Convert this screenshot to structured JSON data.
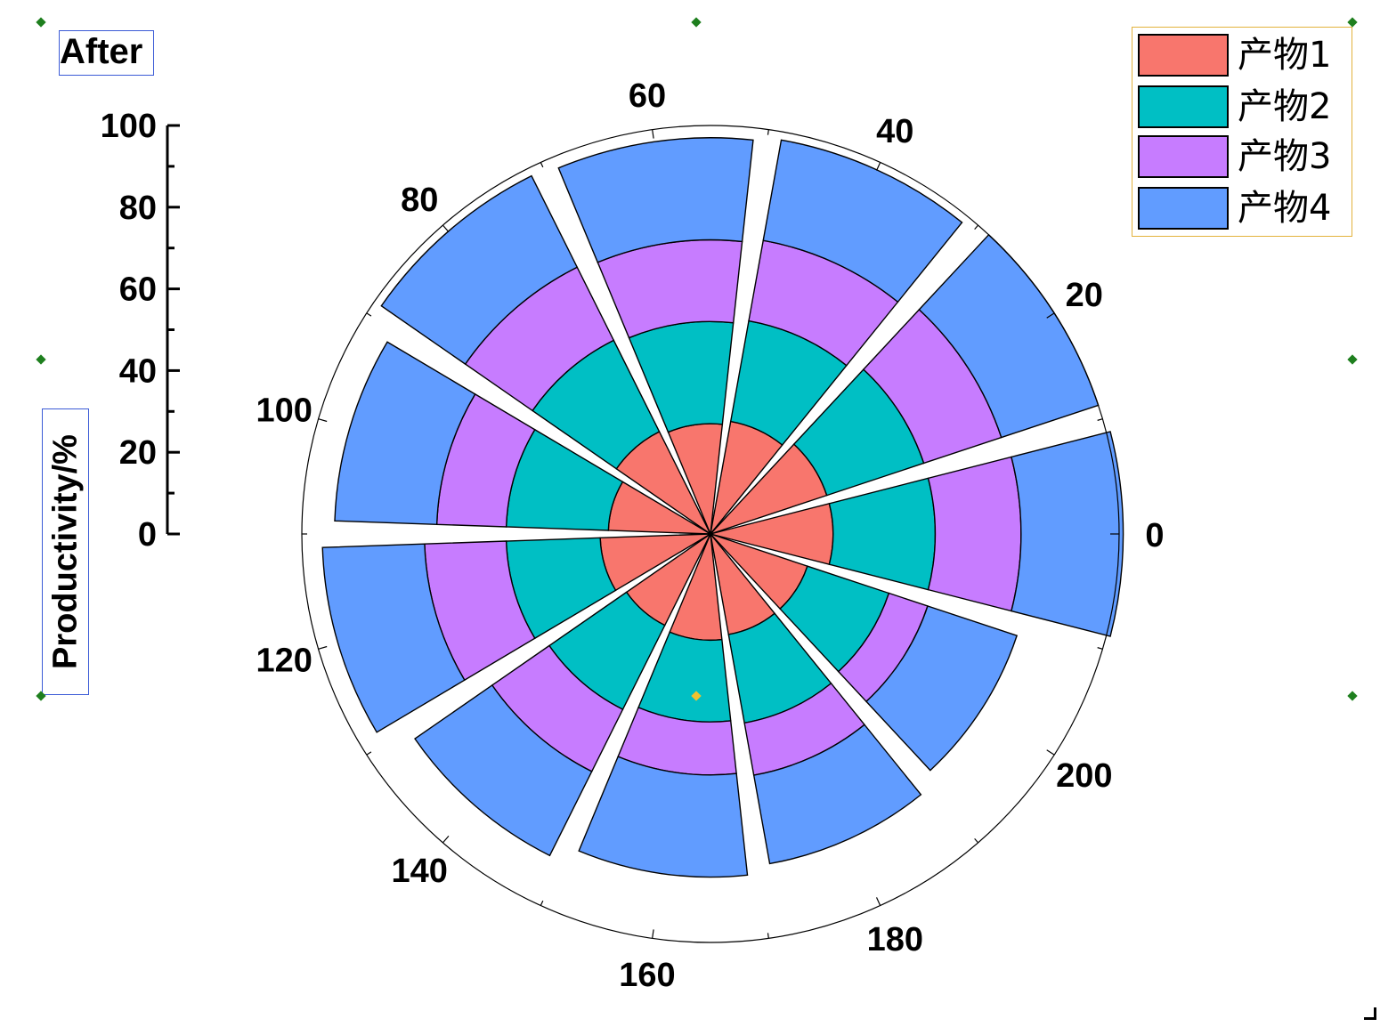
{
  "title": "After",
  "ylabel": "Productivity/%",
  "legend": {
    "items": [
      {
        "label": "产物1",
        "color": "#f8766d"
      },
      {
        "label": "产物2",
        "color": "#00bfc4"
      },
      {
        "label": "产物3",
        "color": "#c77cff"
      },
      {
        "label": "产物4",
        "color": "#619cff"
      }
    ]
  },
  "chart_data": {
    "type": "bar",
    "subtype": "stacked-polar-rose",
    "title": "After",
    "ylabel": "Productivity/%",
    "radial_axis": {
      "min": 0,
      "max": 100,
      "ticks": [
        0,
        20,
        40,
        60,
        80,
        100
      ]
    },
    "angular_axis": {
      "min": 0,
      "max": 220,
      "direction": "counterclockwise",
      "start_angle": "east",
      "tick_labels": [
        "0",
        "20",
        "40",
        "60",
        "80",
        "100",
        "120",
        "140",
        "160",
        "180",
        "200"
      ]
    },
    "legend_position": "top-right",
    "categories": [
      0,
      20,
      40,
      60,
      80,
      100,
      120,
      140,
      160,
      180,
      200
    ],
    "series": [
      {
        "name": "产物1",
        "color": "#f8766d",
        "values": [
          30,
          30,
          28,
          27,
          28,
          25,
          27,
          25,
          26,
          25,
          25
        ]
      },
      {
        "name": "产物2",
        "color": "#00bfc4",
        "values": [
          25,
          25,
          25,
          25,
          25,
          25,
          23,
          23,
          20,
          22,
          21
        ]
      },
      {
        "name": "产物3",
        "color": "#c77cff",
        "values": [
          21,
          20,
          20,
          20,
          20,
          17,
          20,
          17,
          13,
          13,
          10
        ]
      },
      {
        "name": "产物4",
        "color": "#619cff",
        "values": [
          25,
          25,
          25,
          25,
          25,
          25,
          25,
          23,
          25,
          22,
          23
        ]
      }
    ]
  }
}
